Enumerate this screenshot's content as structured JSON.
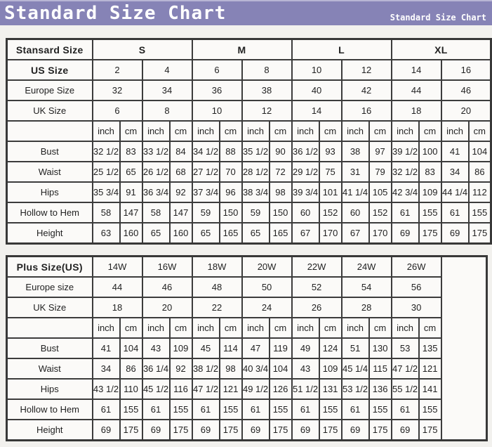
{
  "colors": {
    "header_bg": "#8683b6",
    "header_text": "#ffffff",
    "table_border": "#3c3c3c",
    "page_bg": "#f2f1ee",
    "cell_bg": "#fbfaf8"
  },
  "header": {
    "title": "Standard Size Chart",
    "subtitle": "Standard Size Chart"
  },
  "tables": [
    {
      "name": "standard-size-table",
      "rows": [
        {
          "cells": [
            {
              "t": "Stansard Size",
              "b": 1
            },
            {
              "t": "S",
              "b": 1,
              "cs": 4
            },
            {
              "t": "M",
              "b": 1,
              "cs": 4
            },
            {
              "t": "L",
              "b": 1,
              "cs": 4
            },
            {
              "t": "XL",
              "b": 1,
              "cs": 4
            }
          ]
        },
        {
          "cells": [
            {
              "t": "US Size",
              "b": 1
            },
            {
              "t": "2",
              "cs": 2
            },
            {
              "t": "4",
              "cs": 2
            },
            {
              "t": "6",
              "cs": 2
            },
            {
              "t": "8",
              "cs": 2
            },
            {
              "t": "10",
              "cs": 2
            },
            {
              "t": "12",
              "cs": 2
            },
            {
              "t": "14",
              "cs": 2
            },
            {
              "t": "16",
              "cs": 2
            }
          ]
        },
        {
          "cells": [
            {
              "t": "Europe Size"
            },
            {
              "t": "32",
              "cs": 2
            },
            {
              "t": "34",
              "cs": 2
            },
            {
              "t": "36",
              "cs": 2
            },
            {
              "t": "38",
              "cs": 2
            },
            {
              "t": "40",
              "cs": 2
            },
            {
              "t": "42",
              "cs": 2
            },
            {
              "t": "44",
              "cs": 2
            },
            {
              "t": "46",
              "cs": 2
            }
          ]
        },
        {
          "cells": [
            {
              "t": "UK Size"
            },
            {
              "t": "6",
              "cs": 2
            },
            {
              "t": "8",
              "cs": 2
            },
            {
              "t": "10",
              "cs": 2
            },
            {
              "t": "12",
              "cs": 2
            },
            {
              "t": "14",
              "cs": 2
            },
            {
              "t": "16",
              "cs": 2
            },
            {
              "t": "18",
              "cs": 2
            },
            {
              "t": "20",
              "cs": 2
            }
          ]
        },
        {
          "cells": [
            {
              "t": ""
            },
            {
              "t": "inch"
            },
            {
              "t": "cm"
            },
            {
              "t": "inch"
            },
            {
              "t": "cm"
            },
            {
              "t": "inch"
            },
            {
              "t": "cm"
            },
            {
              "t": "inch"
            },
            {
              "t": "cm"
            },
            {
              "t": "inch"
            },
            {
              "t": "cm"
            },
            {
              "t": "inch"
            },
            {
              "t": "cm"
            },
            {
              "t": "inch"
            },
            {
              "t": "cm"
            },
            {
              "t": "inch"
            },
            {
              "t": "cm"
            }
          ]
        },
        {
          "cells": [
            {
              "t": "Bust"
            },
            {
              "t": "32 1/2"
            },
            {
              "t": "83"
            },
            {
              "t": "33 1/2"
            },
            {
              "t": "84"
            },
            {
              "t": "34 1/2"
            },
            {
              "t": "88"
            },
            {
              "t": "35 1/2"
            },
            {
              "t": "90"
            },
            {
              "t": "36 1/2"
            },
            {
              "t": "93"
            },
            {
              "t": "38"
            },
            {
              "t": "97"
            },
            {
              "t": "39 1/2"
            },
            {
              "t": "100"
            },
            {
              "t": "41"
            },
            {
              "t": "104"
            }
          ]
        },
        {
          "cells": [
            {
              "t": "Waist"
            },
            {
              "t": "25 1/2"
            },
            {
              "t": "65"
            },
            {
              "t": "26 1/2"
            },
            {
              "t": "68"
            },
            {
              "t": "27 1/2"
            },
            {
              "t": "70"
            },
            {
              "t": "28 1/2"
            },
            {
              "t": "72"
            },
            {
              "t": "29 1/2"
            },
            {
              "t": "75"
            },
            {
              "t": "31"
            },
            {
              "t": "79"
            },
            {
              "t": "32 1/2"
            },
            {
              "t": "83"
            },
            {
              "t": "34"
            },
            {
              "t": "86"
            }
          ]
        },
        {
          "cells": [
            {
              "t": "Hips"
            },
            {
              "t": "35 3/4"
            },
            {
              "t": "91"
            },
            {
              "t": "36 3/4"
            },
            {
              "t": "92"
            },
            {
              "t": "37 3/4"
            },
            {
              "t": "96"
            },
            {
              "t": "38 3/4"
            },
            {
              "t": "98"
            },
            {
              "t": "39 3/4"
            },
            {
              "t": "101"
            },
            {
              "t": "41 1/4"
            },
            {
              "t": "105"
            },
            {
              "t": "42 3/4"
            },
            {
              "t": "109"
            },
            {
              "t": "44 1/4"
            },
            {
              "t": "112"
            }
          ]
        },
        {
          "cells": [
            {
              "t": "Hollow to Hem"
            },
            {
              "t": "58"
            },
            {
              "t": "147"
            },
            {
              "t": "58"
            },
            {
              "t": "147"
            },
            {
              "t": "59"
            },
            {
              "t": "150"
            },
            {
              "t": "59"
            },
            {
              "t": "150"
            },
            {
              "t": "60"
            },
            {
              "t": "152"
            },
            {
              "t": "60"
            },
            {
              "t": "152"
            },
            {
              "t": "61"
            },
            {
              "t": "155"
            },
            {
              "t": "61"
            },
            {
              "t": "155"
            }
          ]
        },
        {
          "cells": [
            {
              "t": "Height"
            },
            {
              "t": "63"
            },
            {
              "t": "160"
            },
            {
              "t": "65"
            },
            {
              "t": "160"
            },
            {
              "t": "65"
            },
            {
              "t": "165"
            },
            {
              "t": "65"
            },
            {
              "t": "165"
            },
            {
              "t": "67"
            },
            {
              "t": "170"
            },
            {
              "t": "67"
            },
            {
              "t": "170"
            },
            {
              "t": "69"
            },
            {
              "t": "175"
            },
            {
              "t": "69"
            },
            {
              "t": "175"
            }
          ]
        }
      ]
    },
    {
      "name": "plus-size-table",
      "rows": [
        {
          "cells": [
            {
              "t": "Plus Size(US)",
              "b": 1
            },
            {
              "t": "14W",
              "cs": 2
            },
            {
              "t": "16W",
              "cs": 2
            },
            {
              "t": "18W",
              "cs": 2
            },
            {
              "t": "20W",
              "cs": 2
            },
            {
              "t": "22W",
              "cs": 2
            },
            {
              "t": "24W",
              "cs": 2
            },
            {
              "t": "26W",
              "cs": 2
            },
            {
              "t": "",
              "rs": 9
            }
          ]
        },
        {
          "cells": [
            {
              "t": "Europe size"
            },
            {
              "t": "44",
              "cs": 2
            },
            {
              "t": "46",
              "cs": 2
            },
            {
              "t": "48",
              "cs": 2
            },
            {
              "t": "50",
              "cs": 2
            },
            {
              "t": "52",
              "cs": 2
            },
            {
              "t": "54",
              "cs": 2
            },
            {
              "t": "56",
              "cs": 2
            }
          ]
        },
        {
          "cells": [
            {
              "t": "UK Size"
            },
            {
              "t": "18",
              "cs": 2
            },
            {
              "t": "20",
              "cs": 2
            },
            {
              "t": "22",
              "cs": 2
            },
            {
              "t": "24",
              "cs": 2
            },
            {
              "t": "26",
              "cs": 2
            },
            {
              "t": "28",
              "cs": 2
            },
            {
              "t": "30",
              "cs": 2
            }
          ]
        },
        {
          "cells": [
            {
              "t": ""
            },
            {
              "t": "inch"
            },
            {
              "t": "cm"
            },
            {
              "t": "inch"
            },
            {
              "t": "cm"
            },
            {
              "t": "inch"
            },
            {
              "t": "cm"
            },
            {
              "t": "inch"
            },
            {
              "t": "cm"
            },
            {
              "t": "inch"
            },
            {
              "t": "cm"
            },
            {
              "t": "inch"
            },
            {
              "t": "cm"
            },
            {
              "t": "inch"
            },
            {
              "t": "cm"
            }
          ]
        },
        {
          "cells": [
            {
              "t": "Bust"
            },
            {
              "t": "41"
            },
            {
              "t": "104"
            },
            {
              "t": "43"
            },
            {
              "t": "109"
            },
            {
              "t": "45"
            },
            {
              "t": "114"
            },
            {
              "t": "47"
            },
            {
              "t": "119"
            },
            {
              "t": "49"
            },
            {
              "t": "124"
            },
            {
              "t": "51"
            },
            {
              "t": "130"
            },
            {
              "t": "53"
            },
            {
              "t": "135"
            }
          ]
        },
        {
          "cells": [
            {
              "t": "Waist"
            },
            {
              "t": "34"
            },
            {
              "t": "86"
            },
            {
              "t": "36 1/4"
            },
            {
              "t": "92"
            },
            {
              "t": "38 1/2"
            },
            {
              "t": "98"
            },
            {
              "t": "40 3/4"
            },
            {
              "t": "104"
            },
            {
              "t": "43"
            },
            {
              "t": "109"
            },
            {
              "t": "45 1/4"
            },
            {
              "t": "115"
            },
            {
              "t": "47 1/2"
            },
            {
              "t": "121"
            }
          ]
        },
        {
          "cells": [
            {
              "t": "Hips"
            },
            {
              "t": "43 1/2"
            },
            {
              "t": "110"
            },
            {
              "t": "45 1/2"
            },
            {
              "t": "116"
            },
            {
              "t": "47 1/2"
            },
            {
              "t": "121"
            },
            {
              "t": "49 1/2"
            },
            {
              "t": "126"
            },
            {
              "t": "51 1/2"
            },
            {
              "t": "131"
            },
            {
              "t": "53 1/2"
            },
            {
              "t": "136"
            },
            {
              "t": "55 1/2"
            },
            {
              "t": "141"
            }
          ]
        },
        {
          "cells": [
            {
              "t": "Hollow to Hem"
            },
            {
              "t": "61"
            },
            {
              "t": "155"
            },
            {
              "t": "61"
            },
            {
              "t": "155"
            },
            {
              "t": "61"
            },
            {
              "t": "155"
            },
            {
              "t": "61"
            },
            {
              "t": "155"
            },
            {
              "t": "61"
            },
            {
              "t": "155"
            },
            {
              "t": "61"
            },
            {
              "t": "155"
            },
            {
              "t": "61"
            },
            {
              "t": "155"
            }
          ]
        },
        {
          "cells": [
            {
              "t": "Height"
            },
            {
              "t": "69"
            },
            {
              "t": "175"
            },
            {
              "t": "69"
            },
            {
              "t": "175"
            },
            {
              "t": "69"
            },
            {
              "t": "175"
            },
            {
              "t": "69"
            },
            {
              "t": "175"
            },
            {
              "t": "69"
            },
            {
              "t": "175"
            },
            {
              "t": "69"
            },
            {
              "t": "175"
            },
            {
              "t": "69"
            },
            {
              "t": "175"
            }
          ]
        }
      ]
    }
  ]
}
